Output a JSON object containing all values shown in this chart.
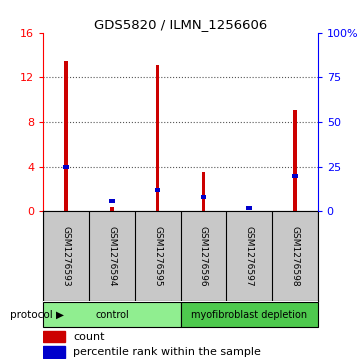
{
  "title": "GDS5820 / ILMN_1256606",
  "samples": [
    "GSM1276593",
    "GSM1276594",
    "GSM1276595",
    "GSM1276596",
    "GSM1276597",
    "GSM1276598"
  ],
  "counts": [
    13.5,
    0.4,
    13.1,
    3.5,
    0.05,
    9.1
  ],
  "percentile_ranks": [
    25.0,
    6.0,
    12.0,
    8.0,
    2.0,
    20.0
  ],
  "ylim_left": [
    0,
    16
  ],
  "ylim_right": [
    0,
    100
  ],
  "yticks_left": [
    0,
    4,
    8,
    12,
    16
  ],
  "ytick_labels_left": [
    "0",
    "4",
    "8",
    "12",
    "16"
  ],
  "yticks_right": [
    0,
    25,
    50,
    75,
    100
  ],
  "ytick_labels_right": [
    "0",
    "25",
    "50",
    "75",
    "100%"
  ],
  "groups": [
    {
      "label": "control",
      "samples": [
        0,
        1,
        2
      ],
      "color": "#90EE90"
    },
    {
      "label": "myofibroblast depletion",
      "samples": [
        3,
        4,
        5
      ],
      "color": "#4EC94E"
    }
  ],
  "bar_color": "#CC0000",
  "percentile_color": "#0000CC",
  "protocol_label": "protocol",
  "legend_count_label": "count",
  "legend_percentile_label": "percentile rank within the sample",
  "grid_color": "#555555",
  "label_area_bg": "#C8C8C8",
  "background_color": "#FFFFFF"
}
